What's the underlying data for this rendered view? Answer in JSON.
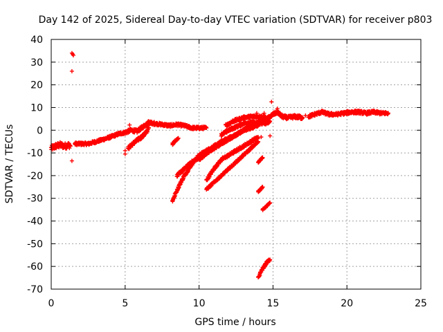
{
  "chart_data": {
    "type": "scatter",
    "title": "Day 142 of 2025, Sidereal Day-to-day VTEC variation (SDTVAR) for receiver p803",
    "xlabel": "GPS time / hours",
    "ylabel": "SDTVAR / TECUs",
    "xlim": [
      0,
      25
    ],
    "ylim": [
      -70,
      40
    ],
    "x_ticks": [
      0,
      5,
      10,
      15,
      20,
      25
    ],
    "y_ticks": [
      -70,
      -60,
      -50,
      -40,
      -30,
      -20,
      -10,
      0,
      10,
      20,
      30,
      40
    ],
    "x_tick_labels": [
      "0",
      "5",
      "10",
      "15",
      "20",
      "25"
    ],
    "y_tick_labels": [
      "-70",
      "-60",
      "-50",
      "-40",
      "-30",
      "-20",
      "-10",
      "0",
      "10",
      "20",
      "30",
      "40"
    ],
    "grid": true,
    "marker": "plus",
    "color": "#ff0000",
    "series": [
      {
        "name": "SDTVAR",
        "tracks": [
          {
            "points": [
              [
                0.0,
                -8
              ],
              [
                0.3,
                -7
              ],
              [
                0.6,
                -6.5
              ],
              [
                0.9,
                -7
              ],
              [
                1.2,
                -6.5
              ],
              [
                1.3,
                -7
              ]
            ],
            "spread": 2.5
          },
          {
            "points": [
              [
                1.6,
                -6
              ],
              [
                2.5,
                -6
              ],
              [
                3.3,
                -4.5
              ],
              [
                4.0,
                -3
              ],
              [
                4.6,
                -1.5
              ],
              [
                5.0,
                -1
              ]
            ],
            "spread": 1.2
          },
          {
            "points": [
              [
                5.0,
                -1
              ],
              [
                5.4,
                0
              ],
              [
                5.8,
                -0.5
              ],
              [
                6.2,
                1.5
              ],
              [
                6.6,
                3.5
              ],
              [
                7.0,
                3
              ]
            ],
            "spread": 1.5
          },
          {
            "points": [
              [
                5.2,
                -8
              ],
              [
                5.5,
                -6
              ],
              [
                5.9,
                -4
              ],
              [
                6.3,
                -2
              ],
              [
                6.6,
                1
              ]
            ],
            "spread": 1.5
          },
          {
            "points": [
              [
                6.9,
                3
              ],
              [
                7.5,
                2.5
              ],
              [
                8.0,
                2
              ],
              [
                8.5,
                2.5
              ],
              [
                9.0,
                2
              ],
              [
                9.5,
                1
              ],
              [
                10.0,
                1
              ],
              [
                10.5,
                1
              ]
            ],
            "spread": 1.2
          },
          {
            "points": [
              [
                8.2,
                -6
              ],
              [
                8.4,
                -4.5
              ],
              [
                8.6,
                -3.5
              ]
            ],
            "spread": 0.8
          },
          {
            "points": [
              [
                8.2,
                -31
              ],
              [
                8.6,
                -25
              ],
              [
                9.0,
                -20
              ],
              [
                9.5,
                -15
              ],
              [
                10.0,
                -11
              ],
              [
                10.5,
                -9
              ],
              [
                11.0,
                -7
              ]
            ],
            "spread": 1.2
          },
          {
            "points": [
              [
                8.5,
                -20
              ],
              [
                9.0,
                -17
              ],
              [
                9.5,
                -14
              ],
              [
                10.0,
                -12
              ],
              [
                10.5,
                -10
              ]
            ],
            "spread": 1.2
          },
          {
            "points": [
              [
                10.5,
                -22
              ],
              [
                11.0,
                -17
              ],
              [
                11.5,
                -13
              ],
              [
                12.0,
                -11
              ],
              [
                12.5,
                -9
              ],
              [
                13.0,
                -7
              ],
              [
                13.5,
                -5
              ],
              [
                14.0,
                -3
              ]
            ],
            "spread": 1.2
          },
          {
            "points": [
              [
                10.0,
                -13
              ],
              [
                10.5,
                -10
              ],
              [
                11.0,
                -8
              ],
              [
                11.5,
                -6
              ],
              [
                12.0,
                -4
              ],
              [
                12.5,
                -2
              ],
              [
                13.0,
                0
              ],
              [
                13.5,
                1
              ],
              [
                14.0,
                2
              ]
            ],
            "spread": 1.2
          },
          {
            "points": [
              [
                11.0,
                -7
              ],
              [
                11.5,
                -5
              ],
              [
                12.0,
                -3.5
              ],
              [
                12.5,
                -2
              ],
              [
                13.0,
                0
              ],
              [
                13.5,
                2
              ],
              [
                14.0,
                3.5
              ],
              [
                14.5,
                4
              ]
            ],
            "spread": 1.2
          },
          {
            "points": [
              [
                11.5,
                -2
              ],
              [
                12.0,
                0
              ],
              [
                12.5,
                1.5
              ],
              [
                13.0,
                3
              ],
              [
                13.5,
                3.5
              ],
              [
                14.0,
                3
              ],
              [
                14.5,
                3
              ],
              [
                14.8,
                4
              ]
            ],
            "spread": 1.2
          },
          {
            "points": [
              [
                11.8,
                2
              ],
              [
                12.3,
                4
              ],
              [
                13.0,
                5.5
              ],
              [
                13.5,
                6
              ],
              [
                14.0,
                6
              ],
              [
                14.5,
                6
              ]
            ],
            "spread": 1.2
          },
          {
            "points": [
              [
                10.5,
                -26
              ],
              [
                11.0,
                -23
              ],
              [
                11.5,
                -20
              ],
              [
                12.0,
                -17
              ],
              [
                12.5,
                -14
              ],
              [
                13.0,
                -11
              ],
              [
                13.5,
                -8
              ],
              [
                14.0,
                -5
              ]
            ],
            "spread": 0.9
          },
          {
            "points": [
              [
                14.0,
                -14
              ],
              [
                14.3,
                -12
              ]
            ],
            "spread": 0.5
          },
          {
            "points": [
              [
                14.0,
                -27
              ],
              [
                14.3,
                -25
              ]
            ],
            "spread": 0.5
          },
          {
            "points": [
              [
                14.3,
                -35
              ],
              [
                14.8,
                -32
              ]
            ],
            "spread": 0.5
          },
          {
            "points": [
              [
                14.0,
                -65
              ],
              [
                14.2,
                -62
              ],
              [
                14.4,
                -60
              ],
              [
                14.6,
                -58
              ],
              [
                14.8,
                -57
              ]
            ],
            "spread": 1.0
          },
          {
            "points": [
              [
                14.6,
                5
              ],
              [
                15.0,
                7
              ],
              [
                15.3,
                8
              ],
              [
                15.6,
                6
              ],
              [
                16.0,
                5.5
              ],
              [
                16.5,
                6
              ],
              [
                17.0,
                5.5
              ]
            ],
            "spread": 1.5
          },
          {
            "points": [
              [
                17.4,
                6
              ],
              [
                17.8,
                7
              ],
              [
                18.3,
                8
              ],
              [
                18.8,
                7
              ],
              [
                19.3,
                7
              ],
              [
                19.8,
                7.5
              ],
              [
                20.3,
                8
              ],
              [
                20.8,
                8
              ],
              [
                21.3,
                7.5
              ],
              [
                21.8,
                8
              ],
              [
                22.3,
                7.5
              ],
              [
                22.8,
                7.5
              ]
            ],
            "spread": 1.3
          }
        ],
        "points": [
          [
            1.4,
            34
          ],
          [
            1.45,
            33.5
          ],
          [
            1.5,
            33
          ],
          [
            1.4,
            26
          ],
          [
            1.4,
            -13.5
          ],
          [
            5.0,
            -10.5
          ],
          [
            5.0,
            -9
          ],
          [
            5.3,
            2.3
          ],
          [
            14.4,
            7.5
          ],
          [
            13.9,
            7.5
          ],
          [
            14.2,
            -3
          ],
          [
            14.8,
            -2.5
          ],
          [
            14.9,
            12.5
          ],
          [
            15.3,
            9.5
          ],
          [
            16.8,
            6.5
          ],
          [
            17.2,
            6.5
          ]
        ]
      }
    ]
  }
}
